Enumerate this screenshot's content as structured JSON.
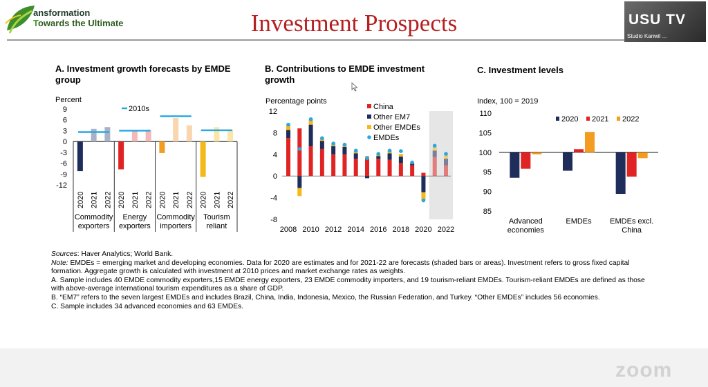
{
  "header": {
    "brand_line1": "ansformation",
    "brand_line2_accent": "T",
    "brand_line2_rest": "owards the Ultimate",
    "title": "Investment Prospects"
  },
  "video": {
    "watermark": "USU TV",
    "participant": "Studio Kanwil ..."
  },
  "panels": {
    "a": {
      "title": "A. Investment growth forecasts by EMDE group"
    },
    "b": {
      "title": "B. Contributions to EMDE investment growth"
    },
    "c": {
      "title": "C. Investment levels"
    }
  },
  "chart_data": [
    {
      "type": "bar",
      "ylabel": "Percent",
      "ylim": [
        -12,
        9
      ],
      "yticks": [
        "9",
        "6",
        "3",
        "0",
        "-3",
        "-6",
        "-9",
        "-12"
      ],
      "years": [
        "2020",
        "2021",
        "2022"
      ],
      "groups": [
        "Commodity exporters",
        "Energy exporters",
        "Commodity importers",
        "Tourism reliant"
      ],
      "group_lines": [
        [
          "Commodity",
          "exporters"
        ],
        [
          "Energy",
          "exporters"
        ],
        [
          "Commodity",
          "importers"
        ],
        [
          "Tourism",
          "reliant"
        ]
      ],
      "values": [
        [
          -8.2,
          3.5,
          4.0
        ],
        [
          -7.7,
          2.8,
          3.2
        ],
        [
          -3.2,
          6.5,
          4.5
        ],
        [
          -9.8,
          4.0,
          3.2
        ]
      ],
      "colors": [
        [
          "#1f2d5a",
          "#a9b3c8",
          "#a9b3c8"
        ],
        [
          "#e02424",
          "#f4b8b8",
          "#f4b8b8"
        ],
        [
          "#f39c1f",
          "#f9d6b0",
          "#f9d6b0"
        ],
        [
          "#f5b91c",
          "#fbe6a9",
          "#fbe6a9"
        ]
      ],
      "reference_series": {
        "name": "2010s",
        "values": [
          2.6,
          3.0,
          7.0,
          3.1
        ],
        "color": "#29a8e0"
      },
      "legend": "top"
    },
    {
      "type": "bar",
      "ylabel": "Percentage points",
      "ylim": [
        -8,
        12
      ],
      "yticks": [
        "12",
        "8",
        "4",
        "0",
        "-4",
        "-8"
      ],
      "x": [
        2008,
        2009,
        2010,
        2011,
        2012,
        2013,
        2014,
        2015,
        2016,
        2017,
        2018,
        2019,
        2020,
        2021,
        2022
      ],
      "xticks": [
        "2008",
        "2010",
        "2012",
        "2014",
        "2016",
        "2018",
        "2020",
        "2022"
      ],
      "series": [
        {
          "name": "China",
          "color": "#e02424",
          "values": [
            7.0,
            8.8,
            5.5,
            5.0,
            4.0,
            4.0,
            3.2,
            3.2,
            3.2,
            3.0,
            2.4,
            2.0,
            0.6,
            3.5,
            2.0
          ]
        },
        {
          "name": "Other EM7",
          "color": "#1f2d5a",
          "values": [
            1.5,
            -2.2,
            4.0,
            1.5,
            1.5,
            1.4,
            1.0,
            -0.4,
            0.5,
            1.2,
            1.2,
            0.3,
            -3.0,
            1.2,
            1.2
          ]
        },
        {
          "name": "Other EMDEs",
          "color": "#f5b91c",
          "values": [
            1.0,
            -1.5,
            1.0,
            0.5,
            0.5,
            0.4,
            0.5,
            0.5,
            0.4,
            0.5,
            0.5,
            0.2,
            -1.5,
            0.7,
            0.7
          ]
        },
        {
          "name": "EMDEs",
          "type": "marker",
          "color": "#29a8e0",
          "values": [
            9.5,
            5.0,
            10.5,
            7.0,
            6.0,
            5.8,
            4.7,
            3.3,
            4.1,
            4.7,
            4.6,
            2.5,
            -4.5,
            5.6,
            4.1
          ]
        }
      ],
      "shaded_from": 2021,
      "legend": "top-right"
    },
    {
      "type": "bar",
      "ylabel": "Index, 100 = 2019",
      "ylim": [
        85,
        110
      ],
      "yticks": [
        "110",
        "105",
        "100",
        "95",
        "90",
        "85"
      ],
      "baseline": 100,
      "categories": [
        "Advanced economies",
        "EMDEs",
        "EMDEs excl. China"
      ],
      "category_lines": [
        [
          "Advanced",
          "economies"
        ],
        [
          "EMDEs"
        ],
        [
          "EMDEs excl.",
          "China"
        ]
      ],
      "series": [
        {
          "name": "2020",
          "color": "#1f2d5a",
          "values": [
            93.5,
            95.3,
            89.4
          ]
        },
        {
          "name": "2021",
          "color": "#e02424",
          "values": [
            95.8,
            100.8,
            93.8
          ]
        },
        {
          "name": "2022",
          "color": "#f39c1f",
          "values": [
            99.5,
            105.2,
            98.5
          ]
        }
      ],
      "legend": "top"
    }
  ],
  "notes": {
    "sources_label": "Sources",
    "sources_text": ": Haver Analytics; World Bank.",
    "note_label": "Note:",
    "note_text": " EMDEs = emerging market and developing economies. Data for 2020 are estimates and for 2021-22 are forecasts (shaded bars or areas). Investment refers to gross fixed capital formation. Aggregate growth is calculated with investment at 2010 prices and market exchange rates as weights.",
    "a_text": "A. Sample includes 40 EMDE commodity exporters,15 EMDE energy exporters, 23 EMDE commodity importers, and 19 tourism-reliant EMDEs. Tourism-reliant EMDEs are defined as those with above-average international tourism expenditures as a share of GDP.",
    "b_text": "B. “EM7” refers to the seven largest EMDEs and includes Brazil, China, India, Indonesia, Mexico, the Russian Federation, and Turkey. “Other EMDEs” includes 56 economies.",
    "c_text": "C. Sample includes 34 advanced economies and 63 EMDEs."
  },
  "zoom": {
    "watermark": "zoom"
  }
}
